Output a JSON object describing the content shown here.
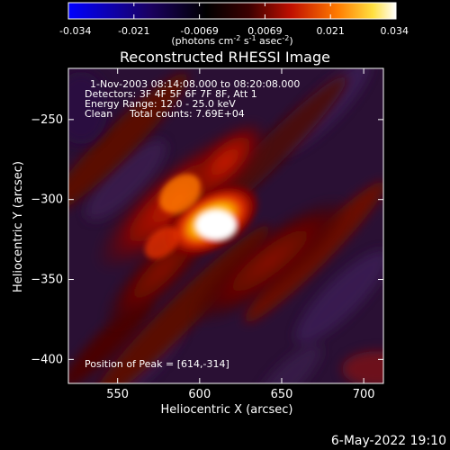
{
  "colorbar": {
    "tick_labels": [
      "-0.034",
      "-0.021",
      "-0.0069",
      "0.0069",
      "0.021",
      "0.034"
    ],
    "unit_label": "(photons cm",
    "unit_exp1": "-2",
    "unit_mid": " s",
    "unit_exp2": "-1",
    "unit_end": " asec",
    "unit_exp3": "-2",
    "unit_close": ")"
  },
  "title": "Reconstructed RHESSI Image",
  "info": {
    "time_range": "1-Nov-2003 08:14:08.000 to 08:20:08.000",
    "detectors": "Detectors: 3F 4F 5F 6F 7F 8F, Att 1",
    "energy": "Energy Range: 12.0 - 25.0 keV",
    "method": "Clean",
    "total_counts": "Total counts: 7.69E+04",
    "peak": "Position of Peak = [614,-314]"
  },
  "date_stamp": "6-May-2022 19:10",
  "chart_data": {
    "type": "heatmap",
    "title": "Reconstructed RHESSI Image",
    "xlabel": "Heliocentric X (arcsec)",
    "ylabel": "Heliocentric Y (arcsec)",
    "xlim": [
      520,
      712
    ],
    "ylim": [
      -415,
      -218
    ],
    "x_ticks": [
      550,
      600,
      650,
      700
    ],
    "y_ticks": [
      -250,
      -300,
      -350,
      -400
    ],
    "color_range": [
      -0.034,
      0.034
    ],
    "colormap": "blue-black-red-yellow-white",
    "peak": {
      "x": 614,
      "y": -314
    }
  }
}
